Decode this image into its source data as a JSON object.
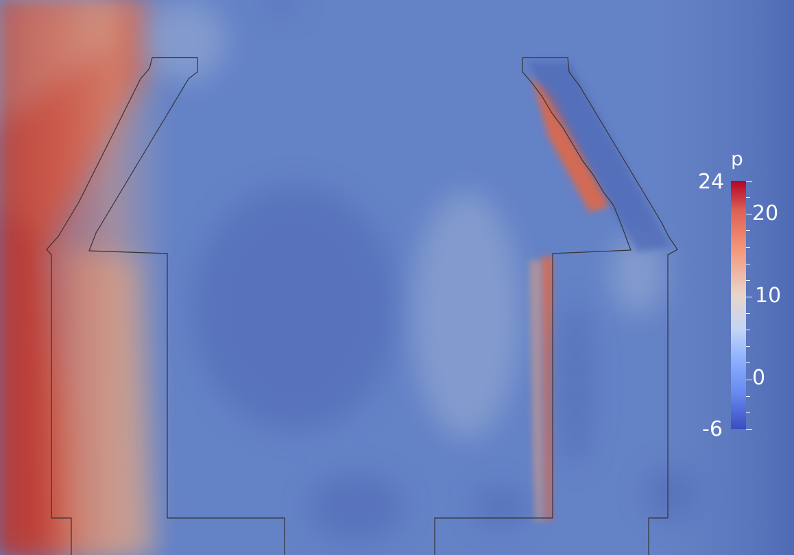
{
  "colorbar": {
    "title": "p",
    "range": [
      -6,
      24
    ],
    "labels": [
      {
        "text": "24",
        "value": 24
      },
      {
        "text": "20",
        "value": 20
      },
      {
        "text": "10",
        "value": 10
      },
      {
        "text": "0",
        "value": 0
      },
      {
        "text": "-6",
        "value": -6
      }
    ],
    "colormap_low": "#3b4cc0",
    "colormap_mid": "#dddddd",
    "colormap_high": "#b40426"
  },
  "background_color": "#5f7fc4"
}
